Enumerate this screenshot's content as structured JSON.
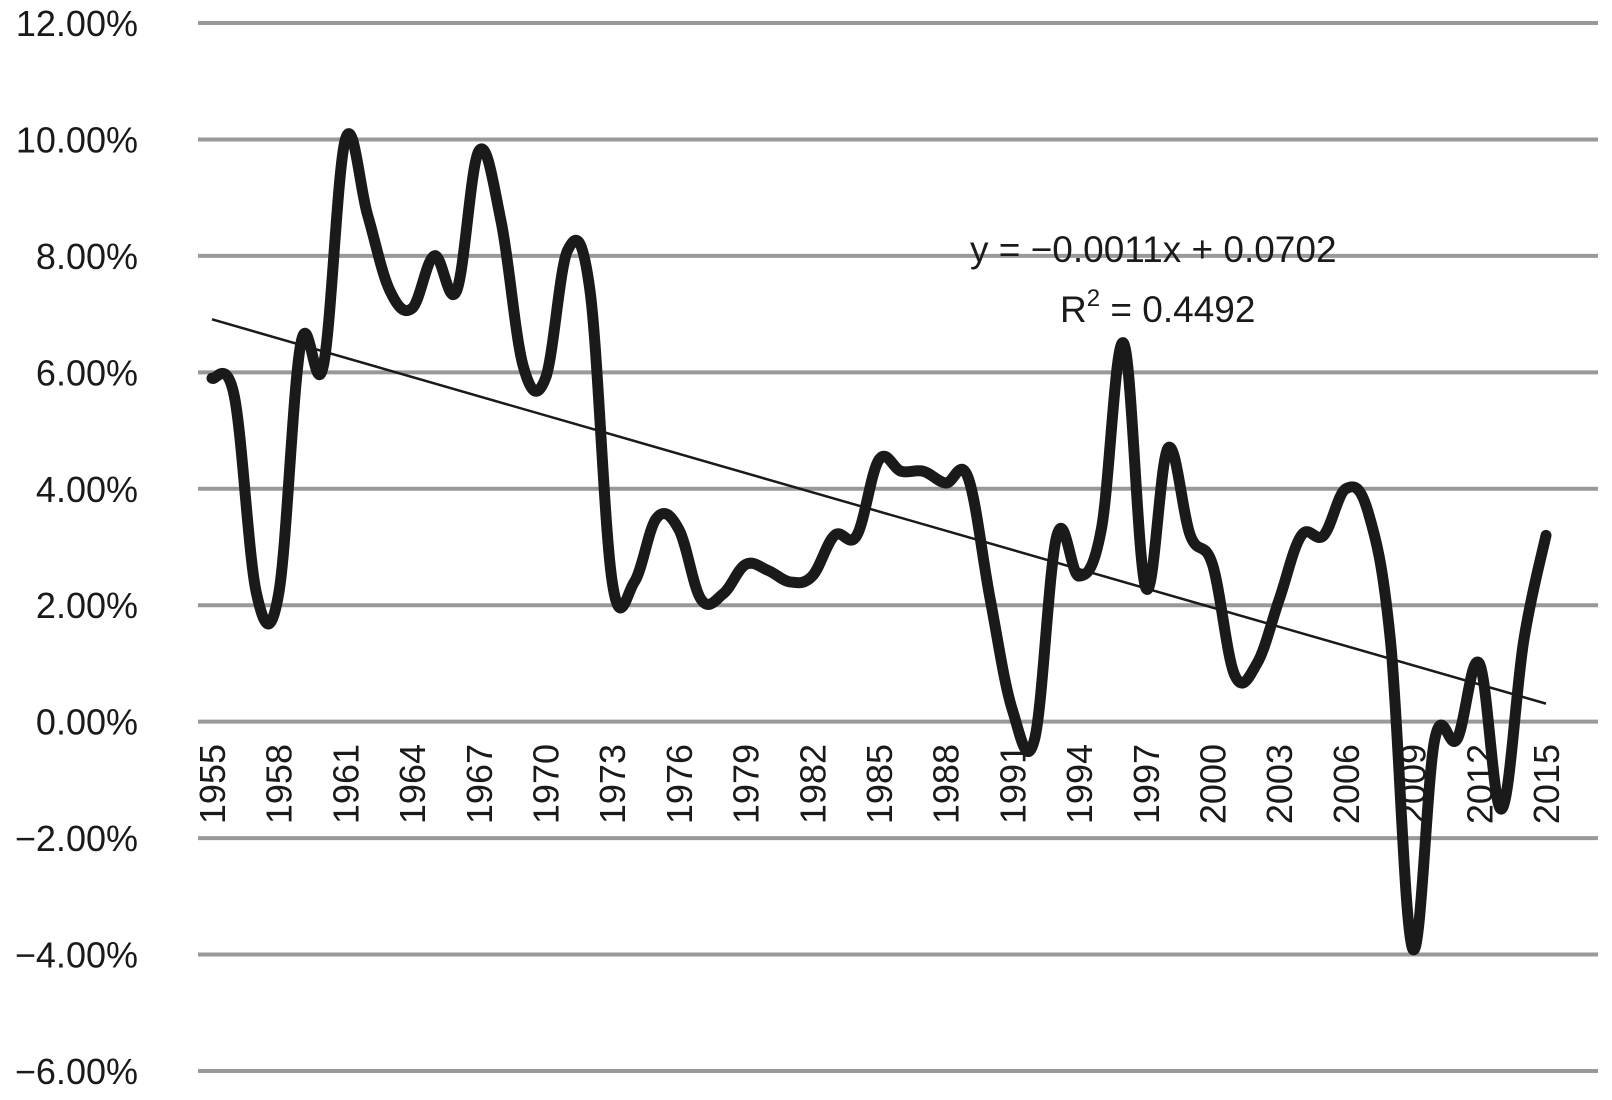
{
  "chart_data": {
    "type": "line",
    "title": "",
    "xlabel": "",
    "ylabel": "",
    "ylim": [
      -0.06,
      0.12
    ],
    "y_ticks": [
      0.12,
      0.1,
      0.08,
      0.06,
      0.04,
      0.02,
      0.0,
      -0.02,
      -0.04,
      -0.06
    ],
    "y_tick_labels": [
      "12.00%",
      "10.00%",
      "8.00%",
      "6.00%",
      "4.00%",
      "2.00%",
      "0.00%",
      "−2.00%",
      "−4.00%",
      "−6.00%"
    ],
    "x_tick_labels": [
      "1955",
      "1958",
      "1961",
      "1964",
      "1967",
      "1970",
      "1973",
      "1976",
      "1979",
      "1982",
      "1985",
      "1988",
      "1991",
      "1994",
      "1997",
      "2000",
      "2003",
      "2006",
      "2009",
      "2012",
      "2015"
    ],
    "grid": true,
    "legend": "none",
    "series": [
      {
        "x": [
          1955,
          1956,
          1957,
          1958,
          1959,
          1960,
          1961,
          1962,
          1963,
          1964,
          1965,
          1966,
          1967,
          1968,
          1969,
          1970,
          1971,
          1972,
          1973,
          1974,
          1975,
          1976,
          1977,
          1978,
          1979,
          1980,
          1981,
          1982,
          1983,
          1984,
          1985,
          1986,
          1987,
          1988,
          1989,
          1990,
          1991,
          1992,
          1993,
          1994,
          1995,
          1996,
          1997,
          1998,
          1999,
          2000,
          2001,
          2002,
          2003,
          2004,
          2005,
          2006,
          2007,
          2008,
          2009,
          2010,
          2011,
          2012,
          2013,
          2014,
          2015
        ],
        "values": [
          0.059,
          0.056,
          0.022,
          0.022,
          0.065,
          0.061,
          0.1,
          0.087,
          0.074,
          0.071,
          0.08,
          0.074,
          0.098,
          0.086,
          0.061,
          0.059,
          0.081,
          0.074,
          0.024,
          0.024,
          0.035,
          0.033,
          0.021,
          0.022,
          0.027,
          0.026,
          0.024,
          0.025,
          0.032,
          0.032,
          0.045,
          0.043,
          0.043,
          0.041,
          0.042,
          0.021,
          0.002,
          -0.003,
          0.032,
          0.025,
          0.033,
          0.065,
          0.023,
          0.047,
          0.032,
          0.027,
          0.008,
          0.01,
          0.021,
          0.032,
          0.032,
          0.04,
          0.036,
          0.014,
          -0.039,
          -0.003,
          -0.003,
          0.01,
          -0.015,
          0.014,
          0.032
        ]
      }
    ],
    "trendline": {
      "equation": "y = −0.0011x + 0.0702",
      "r_squared": "R² = 0.4492",
      "slope": -0.0011,
      "intercept": 0.0702
    }
  }
}
